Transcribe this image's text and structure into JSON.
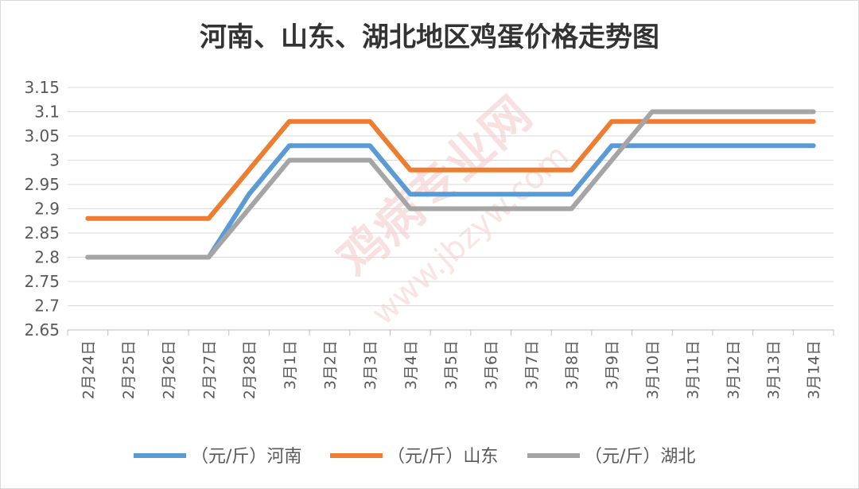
{
  "chart_data": {
    "type": "line",
    "title": "河南、山东、湖北地区鸡蛋价格走势图",
    "categories": [
      "2月24日",
      "2月25日",
      "2月26日",
      "2月27日",
      "2月28日",
      "3月1日",
      "3月2日",
      "3月3日",
      "3月4日",
      "3月5日",
      "3月6日",
      "3月7日",
      "3月8日",
      "3月9日",
      "3月10日",
      "3月11日",
      "3月12日",
      "3月13日",
      "3月14日"
    ],
    "ylim": [
      2.65,
      3.15
    ],
    "yticks": [
      "2.65",
      "2.7",
      "2.75",
      "2.8",
      "2.85",
      "2.9",
      "2.95",
      "3",
      "3.05",
      "3.1",
      "3.15"
    ],
    "grid": true,
    "legend_position": "bottom",
    "series": [
      {
        "name": "（元/斤）河南",
        "color": "#5b9bd5",
        "values": [
          2.8,
          2.8,
          2.8,
          2.8,
          2.93,
          3.03,
          3.03,
          3.03,
          2.93,
          2.93,
          2.93,
          2.93,
          2.93,
          3.03,
          3.03,
          3.03,
          3.03,
          3.03,
          3.03
        ]
      },
      {
        "name": "（元/斤）山东",
        "color": "#ed7d31",
        "values": [
          2.88,
          2.88,
          2.88,
          2.88,
          2.98,
          3.08,
          3.08,
          3.08,
          2.98,
          2.98,
          2.98,
          2.98,
          2.98,
          3.08,
          3.08,
          3.08,
          3.08,
          3.08,
          3.08
        ]
      },
      {
        "name": "（元/斤）湖北",
        "color": "#a5a5a5",
        "values": [
          2.8,
          2.8,
          2.8,
          2.8,
          2.9,
          3.0,
          3.0,
          3.0,
          2.9,
          2.9,
          2.9,
          2.9,
          2.9,
          3.0,
          3.1,
          3.1,
          3.1,
          3.1,
          3.1
        ]
      }
    ]
  },
  "watermark": {
    "text": "鸡病专业网",
    "url": "www.jbzyw.com"
  }
}
